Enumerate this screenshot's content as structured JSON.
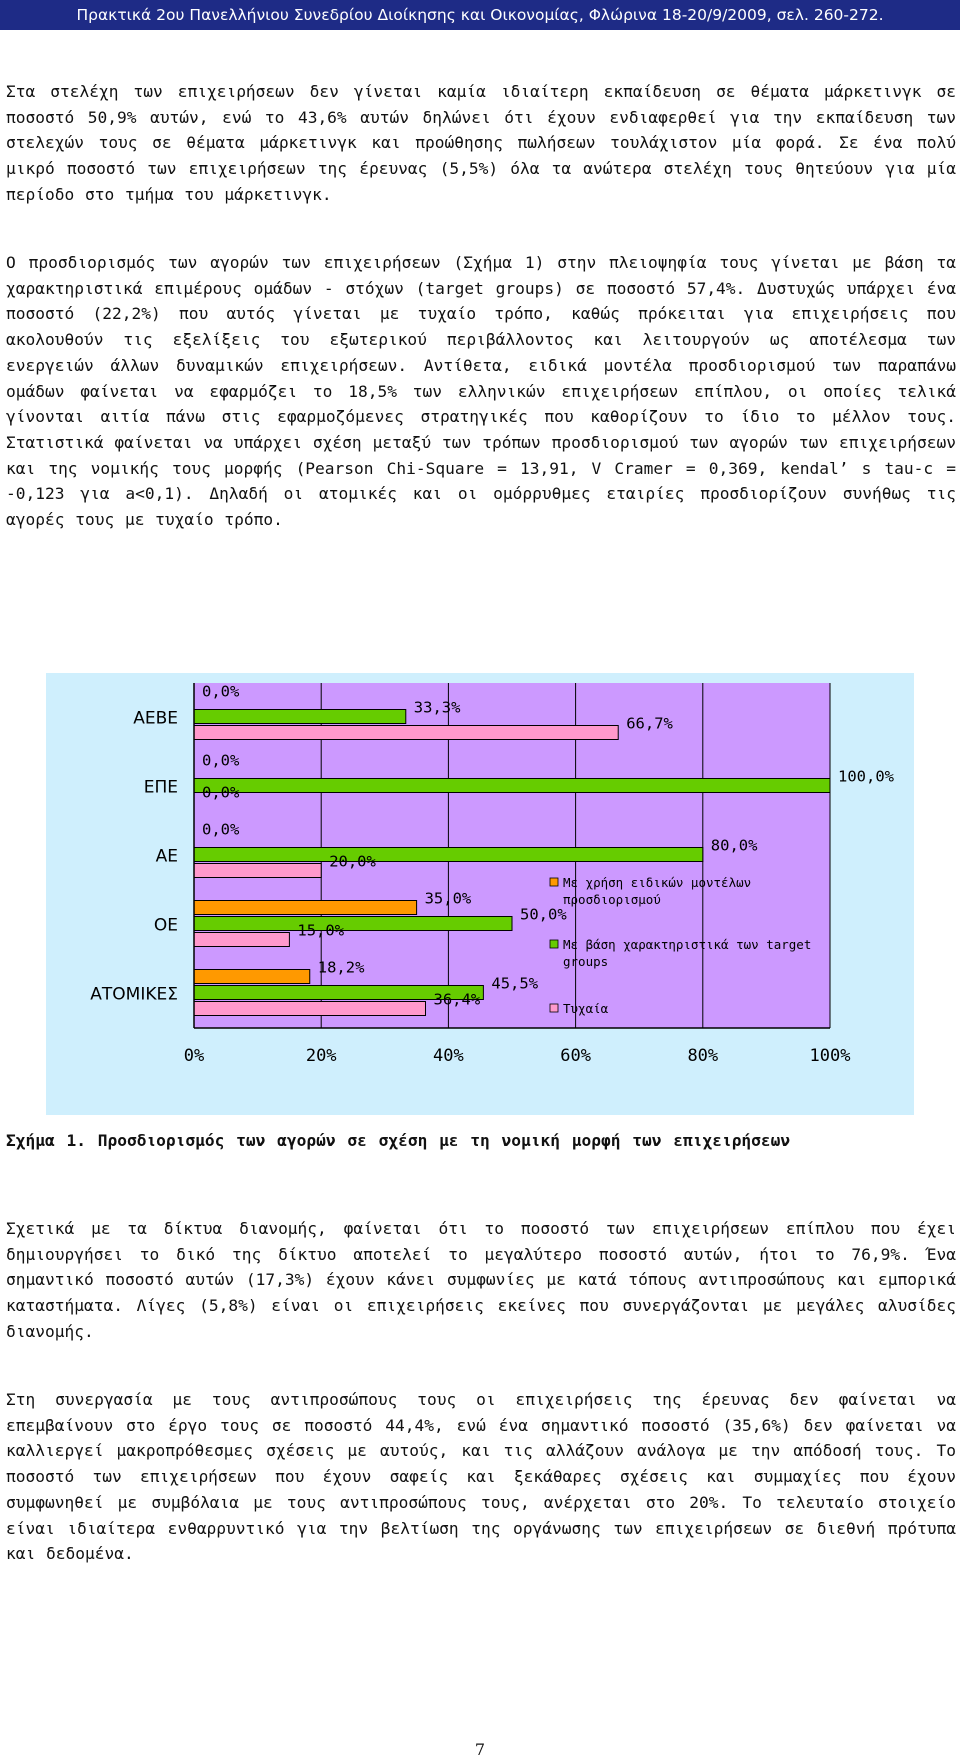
{
  "header": "Πρακτικά 2ου Πανελλήνιου Συνεδρίου Διοίκησης και Οικονομίας, Φλώρινα 18-20/9/2009, σελ. 260-272.",
  "paragraphs": {
    "p1": "Στα στελέχη των επιχειρήσεων δεν γίνεται καμία ιδιαίτερη εκπαίδευση σε θέματα μάρκετινγκ σε ποσοστό 50,9% αυτών, ενώ το 43,6% αυτών δηλώνει ότι έχουν ενδιαφερθεί για την εκπαίδευση των στελεχών τους σε θέματα μάρκετινγκ και προώθησης πωλήσεων τουλάχιστον μία φορά. Σε ένα πολύ μικρό ποσοστό των επιχειρήσεων της έρευνας (5,5%) όλα τα ανώτερα στελέχη τους θητεύουν για μία περίοδο στο τμήμα του μάρκετινγκ.",
    "p2": "Ο προσδιορισμός των αγορών των επιχειρήσεων (Σχήμα 1) στην πλειοψηφία τους γίνεται με βάση τα χαρακτηριστικά επιμέρους ομάδων - στόχων (target groups) σε ποσοστό 57,4%. Δυστυχώς υπάρχει ένα ποσοστό (22,2%) που αυτός γίνεται με τυχαίο τρόπο, καθώς πρόκειται για επιχειρήσεις που ακολουθούν τις εξελίξεις του εξωτερικού περιβάλλοντος και λειτουργούν ως αποτέλεσμα των ενεργειών άλλων δυναμικών επιχειρήσεων. Αντίθετα, ειδικά μοντέλα προσδιορισμού των παραπάνω ομάδων φαίνεται να εφαρμόζει το 18,5% των ελληνικών επιχειρήσεων επίπλου, οι οποίες τελικά γίνονται αιτία πάνω στις εφαρμοζόμενες στρατηγικές που καθορίζουν το ίδιο το μέλλον τους. Στατιστικά φαίνεται να υπάρχει σχέση μεταξύ των τρόπων προσδιορισμού των αγορών των επιχειρήσεων και της νομικής τους μορφής (Pearson Chi-Square = 13,91, V Cramer = 0,369, kendal’ s tau-c = -0,123 για a<0,1). Δηλαδή οι ατομικές και οι ομόρρυθμες εταιρίες προσδιορίζουν συνήθως τις αγορές τους με τυχαίο τρόπο.",
    "p3": "Σχετικά με τα δίκτυα διανομής, φαίνεται ότι το ποσοστό των επιχειρήσεων επίπλου που έχει δημιουργήσει το δικό της δίκτυο αποτελεί το μεγαλύτερο ποσοστό αυτών, ήτοι το 76,9%. Ένα σημαντικό ποσοστό αυτών (17,3%) έχουν κάνει συμφωνίες με κατά τόπους αντιπροσώπους και εμπορικά καταστήματα. Λίγες (5,8%) είναι οι επιχειρήσεις εκείνες που συνεργάζονται με μεγάλες αλυσίδες διανομής.",
    "p4": "Στη συνεργασία με τους αντιπροσώπους τους οι επιχειρήσεις της έρευνας δεν φαίνεται να επεμβαίνουν στο έργο τους σε ποσοστό 44,4%, ενώ ένα σημαντικό ποσοστό (35,6%) δεν φαίνεται να καλλιεργεί μακροπρόθεσμες σχέσεις με αυτούς, και τις αλλάζουν ανάλογα με την απόδοσή τους. Το ποσοστό των επιχειρήσεων που έχουν σαφείς και ξεκάθαρες σχέσεις και συμμαχίες που έχουν συμφωνηθεί με συμβόλαια με τους αντιπροσώπους τους, ανέρχεται στο 20%. Το τελευταίο στοιχείο είναι ιδιαίτερα ενθαρρυντικό για την βελτίωση της οργάνωσης των επιχειρήσεων σε διεθνή πρότυπα και δεδομένα."
  },
  "caption": "Σχήμα 1. Προσδιορισμός των αγορών σε σχέση με τη νομική μορφή των επιχειρήσεων",
  "page_number": "7",
  "colors": {
    "plot_bg": "#cc99ff",
    "chart_bg": "#cfeffd",
    "series_models": "#ff9900",
    "series_target": "#66cc00",
    "series_random": "#ff99cc"
  },
  "chart_data": {
    "type": "bar",
    "orientation": "horizontal",
    "categories": [
      "ΑΕΒΕ",
      "ΕΠΕ",
      "ΑΕ",
      "ΟΕ",
      "ΑΤΟΜΙΚΕΣ"
    ],
    "series": [
      {
        "name": "Με χρήση ειδικών μοντέλων προσδιορισμού",
        "values": [
          0.0,
          0.0,
          0.0,
          35.0,
          18.2
        ],
        "labels": [
          "0,0%",
          "0,0%",
          "0,0%",
          "35,0%",
          "18,2%"
        ]
      },
      {
        "name": "Με βάση χαρακτηριστικά των target groups",
        "values": [
          33.3,
          100.0,
          80.0,
          50.0,
          45.5
        ],
        "labels": [
          "33,3%",
          "100,0%",
          "80,0%",
          "50,0%",
          "45,5%"
        ]
      },
      {
        "name": "Τυχαία",
        "values": [
          66.7,
          0.0,
          20.0,
          15.0,
          36.4
        ],
        "labels": [
          "66,7%",
          "0,0%",
          "20,0%",
          "15,0%",
          "36,4%"
        ]
      }
    ],
    "xticks": [
      "0%",
      "20%",
      "40%",
      "60%",
      "80%",
      "100%"
    ],
    "xlim": [
      0,
      100
    ],
    "legend": [
      "Με χρήση ειδικών",
      "μοντέλων",
      "προσδιορισμού",
      "Με βάση χαρακτηριστικά των target",
      "groups",
      "Τυχαία"
    ],
    "legend_position": "right",
    "grid": true
  }
}
